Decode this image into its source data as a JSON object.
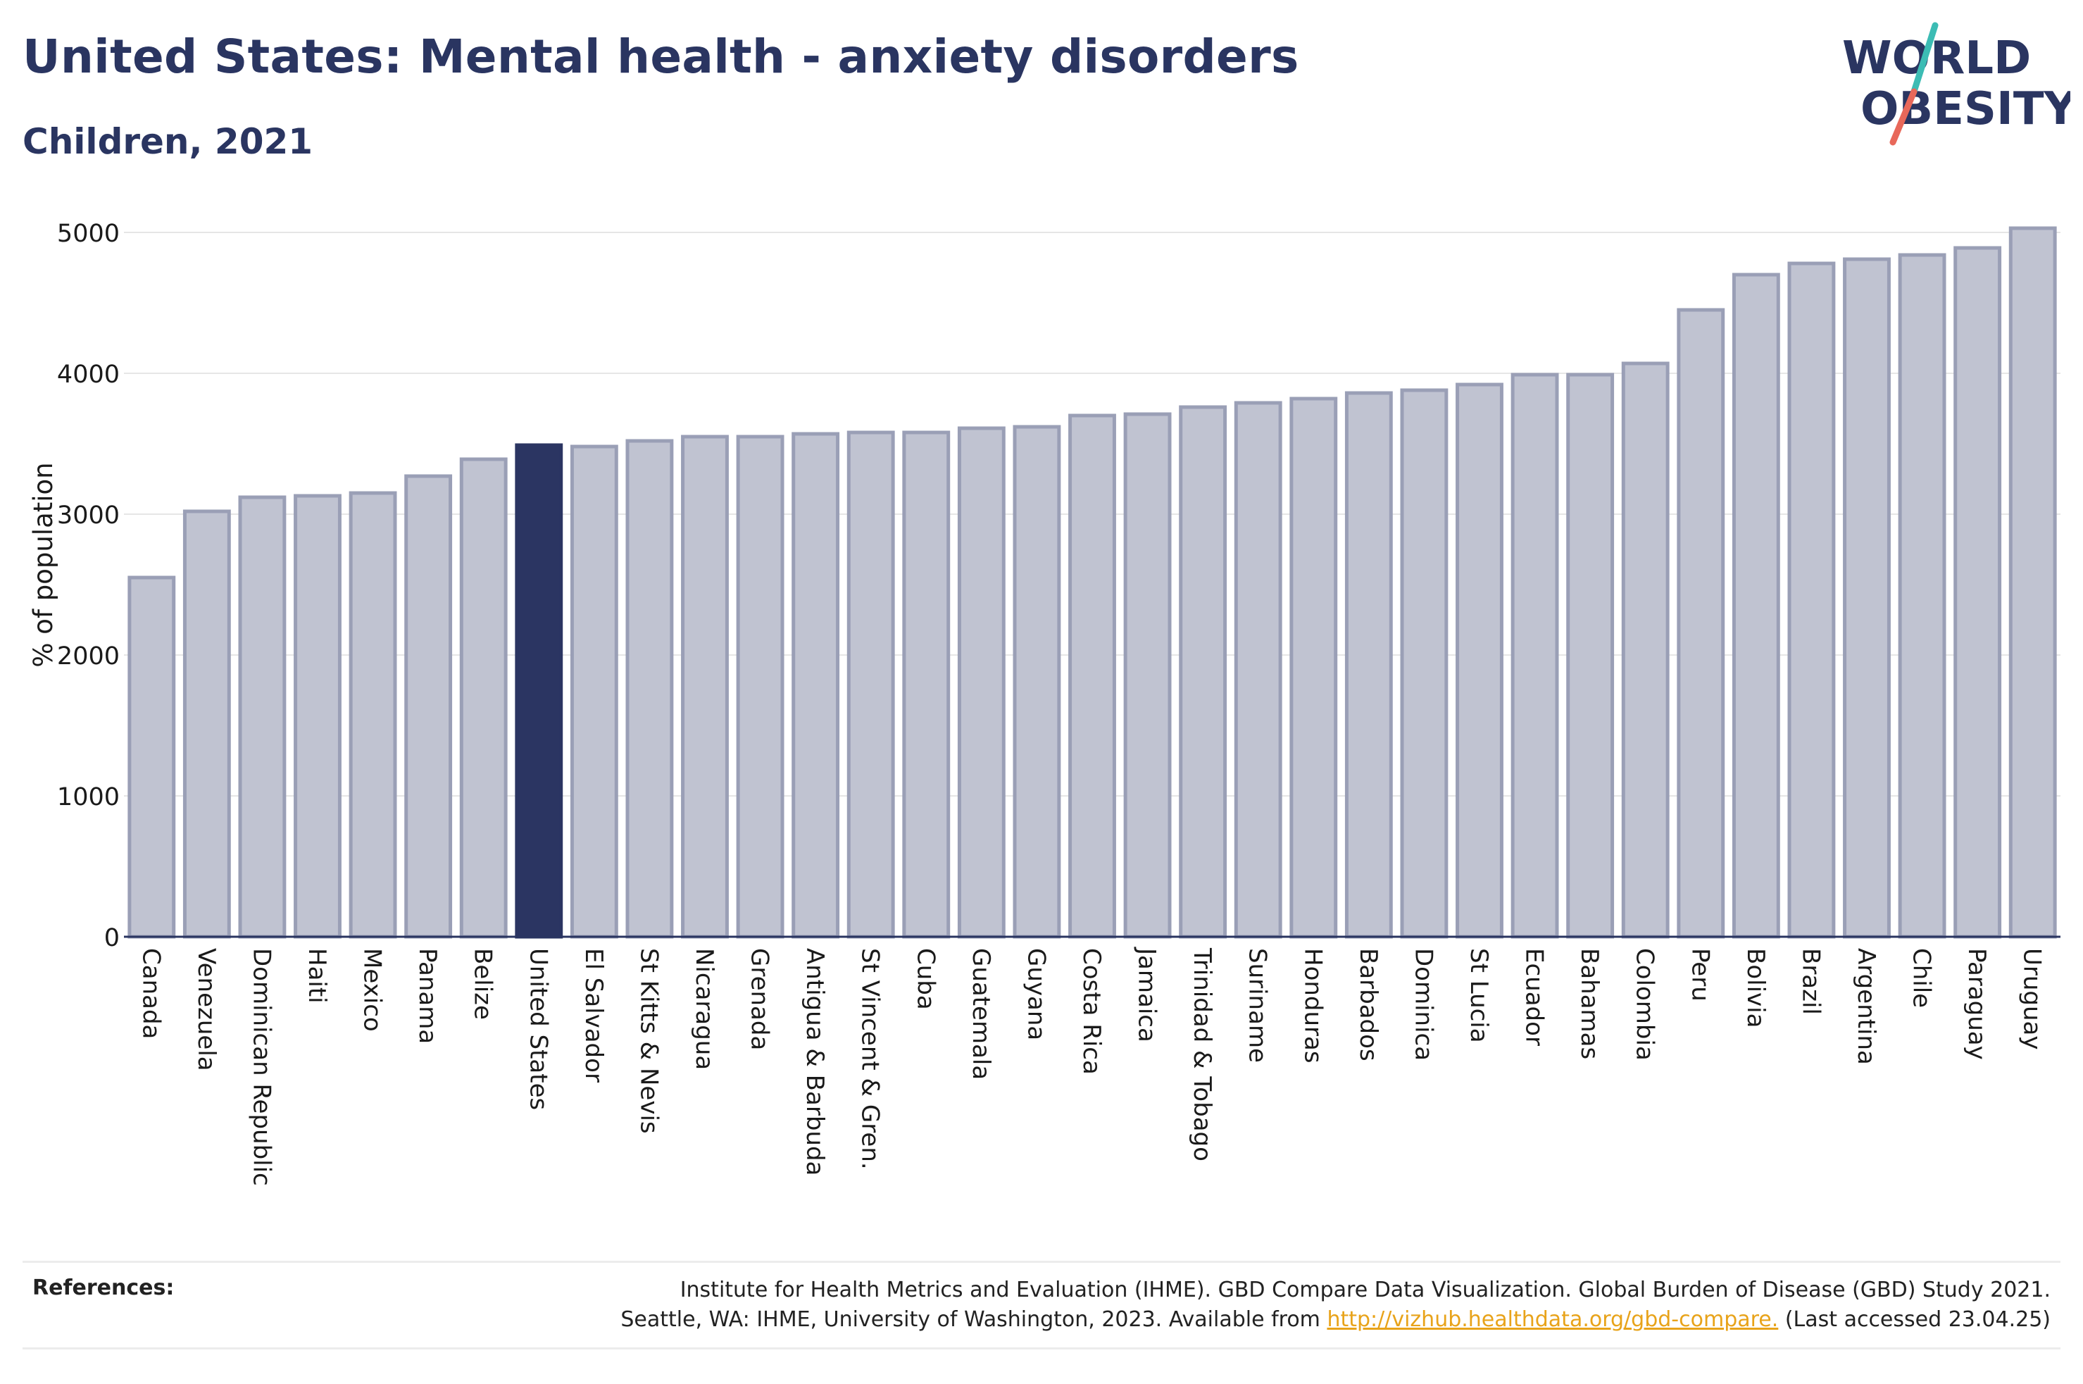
{
  "header": {
    "title": "United States: Mental health - anxiety disorders",
    "subtitle": "Children, 2021"
  },
  "logo": {
    "line1": "WORLD",
    "line2": "OBESITY"
  },
  "colors": {
    "highlight": "#2b3562",
    "bar_fill": "#c0c3d1",
    "bar_stroke": "#9a9fb6",
    "text": "#2a3561",
    "accent_teal": "#3cbcb4",
    "accent_red": "#e8685a"
  },
  "chart_data": {
    "type": "bar",
    "ylabel": "% of population",
    "ylim": [
      0,
      5000
    ],
    "yticks": [
      0,
      1000,
      2000,
      3000,
      4000,
      5000
    ],
    "highlight": "United States",
    "categories": [
      "Canada",
      "Venezuela",
      "Dominican Republic",
      "Haiti",
      "Mexico",
      "Panama",
      "Belize",
      "United States",
      "El Salvador",
      "St Kitts & Nevis",
      "Nicaragua",
      "Grenada",
      "Antigua & Barbuda",
      "St Vincent & Gren.",
      "Cuba",
      "Guatemala",
      "Guyana",
      "Costa Rica",
      "Jamaica",
      "Trinidad & Tobago",
      "Suriname",
      "Honduras",
      "Barbados",
      "Dominica",
      "St Lucia",
      "Ecuador",
      "Bahamas",
      "Colombia",
      "Peru",
      "Bolivia",
      "Brazil",
      "Argentina",
      "Chile",
      "Paraguay",
      "Uruguay"
    ],
    "values": [
      2550,
      3020,
      3120,
      3130,
      3150,
      3270,
      3390,
      3490,
      3480,
      3520,
      3550,
      3550,
      3570,
      3580,
      3580,
      3610,
      3620,
      3700,
      3710,
      3760,
      3790,
      3820,
      3860,
      3880,
      3920,
      3990,
      3990,
      4070,
      4450,
      4700,
      4780,
      4810,
      4840,
      4890,
      5030
    ],
    "grid": true
  },
  "references": {
    "label": "References:",
    "line1": "Institute for Health Metrics and Evaluation (IHME). GBD Compare Data Visualization. Global Burden of Disease (GBD) Study 2021.",
    "line2_before": "Seattle, WA: IHME, University of Washington, 2023. Available from ",
    "link": "http://vizhub.healthdata.org/gbd-compare.",
    "line2_after": " (Last accessed 23.04.25)"
  }
}
